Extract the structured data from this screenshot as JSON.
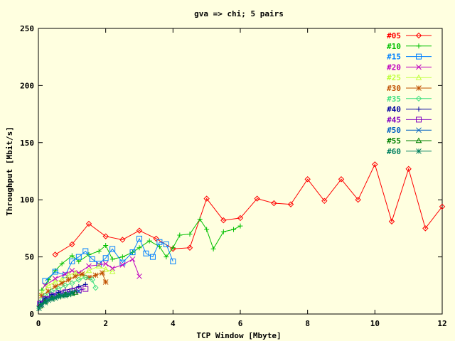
{
  "chart_data": {
    "type": "line",
    "title": "gva => chi;  5 pairs",
    "xlabel": "TCP Window [Mbyte]",
    "ylabel": "Throughput [Mbit/s]",
    "xlim": [
      0,
      12
    ],
    "ylim": [
      0,
      250
    ],
    "xticks": [
      "0",
      "2",
      "4",
      "6",
      "8",
      "10",
      "12"
    ],
    "yticks": [
      "0",
      "50",
      "100",
      "150",
      "200",
      "250"
    ],
    "legend_position": "top-right",
    "grid": false,
    "series": [
      {
        "name": "#05",
        "color": "#ff0000",
        "marker": "diamond",
        "x": [
          0.5,
          1.0,
          1.5,
          2.0,
          2.5,
          3.0,
          3.5,
          4.0,
          4.5,
          5.0,
          5.5,
          6.0,
          6.5,
          7.0,
          7.5,
          8.0,
          8.5,
          9.0,
          9.5,
          10.0,
          10.5,
          11.0,
          11.5,
          12.0
        ],
        "y": [
          52,
          61,
          79,
          68,
          65,
          73,
          66,
          57,
          58,
          101,
          82,
          84,
          101,
          97,
          96,
          118,
          99,
          118,
          100,
          131,
          81,
          127,
          75,
          94
        ]
      },
      {
        "name": "#10",
        "color": "#00c000",
        "marker": "plus",
        "x": [
          0.1,
          0.3,
          0.5,
          0.7,
          1.0,
          1.2,
          1.5,
          1.8,
          2.0,
          2.2,
          2.5,
          2.8,
          3.0,
          3.3,
          3.6,
          3.8,
          4.0,
          4.2,
          4.5,
          4.8,
          5.0,
          5.2,
          5.5,
          5.8,
          6.0
        ],
        "y": [
          21,
          30,
          38,
          44,
          51,
          46,
          52,
          55,
          60,
          48,
          50,
          54,
          58,
          64,
          59,
          50,
          58,
          69,
          70,
          83,
          74,
          57,
          72,
          74,
          77
        ]
      },
      {
        "name": "#15",
        "color": "#0080ff",
        "marker": "square",
        "x": [
          0.2,
          0.5,
          0.8,
          1.0,
          1.2,
          1.4,
          1.6,
          1.8,
          2.0,
          2.2,
          2.5,
          2.8,
          3.0,
          3.2,
          3.4,
          3.6,
          3.8,
          4.0
        ],
        "y": [
          29,
          37,
          34,
          46,
          50,
          55,
          48,
          44,
          49,
          57,
          45,
          54,
          66,
          53,
          50,
          63,
          61,
          46
        ]
      },
      {
        "name": "#20",
        "color": "#c000c0",
        "marker": "cross",
        "x": [
          0.2,
          0.5,
          0.8,
          1.0,
          1.2,
          1.5,
          1.8,
          2.0,
          2.2,
          2.5,
          2.8,
          3.0
        ],
        "y": [
          25,
          31,
          35,
          38,
          36,
          42,
          43,
          44,
          40,
          43,
          48,
          33
        ]
      },
      {
        "name": "#25",
        "color": "#c0ff40",
        "marker": "triangle",
        "x": [
          0.1,
          0.3,
          0.5,
          0.7,
          0.9,
          1.1,
          1.3,
          1.5,
          1.8,
          2.0,
          2.2
        ],
        "y": [
          18,
          25,
          28,
          30,
          34,
          36,
          33,
          38,
          42,
          39,
          37
        ]
      },
      {
        "name": "#30",
        "color": "#c05000",
        "marker": "star",
        "x": [
          0.1,
          0.3,
          0.5,
          0.7,
          0.9,
          1.1,
          1.3,
          1.5,
          1.7,
          1.9,
          2.0
        ],
        "y": [
          16,
          20,
          24,
          27,
          30,
          33,
          35,
          32,
          34,
          36,
          28
        ]
      },
      {
        "name": "#35",
        "color": "#40e080",
        "marker": "diamond",
        "x": [
          0.1,
          0.2,
          0.4,
          0.6,
          0.8,
          1.0,
          1.2,
          1.4,
          1.6,
          1.7
        ],
        "y": [
          12,
          16,
          20,
          22,
          25,
          27,
          30,
          32,
          30,
          23
        ]
      },
      {
        "name": "#40",
        "color": "#0000a0",
        "marker": "plus",
        "x": [
          0.05,
          0.2,
          0.4,
          0.6,
          0.8,
          1.0,
          1.2,
          1.4
        ],
        "y": [
          10,
          14,
          17,
          19,
          21,
          22,
          24,
          26
        ]
      },
      {
        "name": "#45",
        "color": "#8000c0",
        "marker": "square",
        "x": [
          0.05,
          0.2,
          0.4,
          0.6,
          0.8,
          1.0,
          1.2,
          1.4
        ],
        "y": [
          9,
          13,
          16,
          18,
          19,
          20,
          21,
          22
        ]
      },
      {
        "name": "#50",
        "color": "#0060c0",
        "marker": "cross",
        "x": [
          0.05,
          0.2,
          0.4,
          0.6,
          0.8,
          1.0,
          1.2
        ],
        "y": [
          8,
          12,
          15,
          17,
          18,
          19,
          20
        ]
      },
      {
        "name": "#55",
        "color": "#008000",
        "marker": "triangle",
        "x": [
          0.05,
          0.2,
          0.4,
          0.6,
          0.8,
          1.0,
          1.1
        ],
        "y": [
          7,
          11,
          14,
          16,
          17,
          18,
          19
        ]
      },
      {
        "name": "#60",
        "color": "#008060",
        "marker": "star",
        "x": [
          0.02,
          0.1,
          0.2,
          0.3,
          0.4,
          0.5,
          0.6,
          0.7,
          0.8,
          0.9,
          1.0
        ],
        "y": [
          5,
          8,
          10,
          12,
          13,
          14,
          15,
          16,
          16,
          17,
          18
        ]
      }
    ]
  }
}
